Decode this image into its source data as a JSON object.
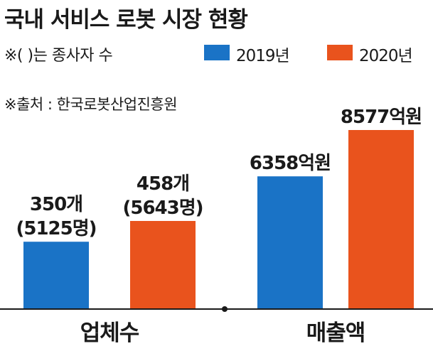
{
  "header": {
    "title": "국내 서비스 로봇 시장 현황",
    "note": "※( )는 종사자 수",
    "source": "※출처 : 한국로봇산업진흥원"
  },
  "legend": [
    {
      "label": "2019년",
      "color": "#1a73c6"
    },
    {
      "label": "2020년",
      "color": "#e9531d"
    }
  ],
  "chart_data": {
    "type": "bar",
    "title": "국내 서비스 로봇 시장 현황",
    "categories": [
      "업체수",
      "매출액"
    ],
    "groups": [
      {
        "category": "업체수",
        "series": [
          {
            "name": "2019년",
            "value": 350,
            "employees": 5125,
            "label_lines": [
              "350개",
              "(5125명)"
            ]
          },
          {
            "name": "2020년",
            "value": 458,
            "employees": 5643,
            "label_lines": [
              "458개",
              "(5643명)"
            ]
          }
        ]
      },
      {
        "category": "매출액",
        "series": [
          {
            "name": "2019년",
            "value": 6358,
            "label_lines": [
              "6358억원"
            ]
          },
          {
            "name": "2020년",
            "value": 8577,
            "label_lines": [
              "8577억원"
            ]
          }
        ]
      }
    ],
    "xlabel": "",
    "ylabel": "",
    "grid": false,
    "legend_position": "top-right"
  }
}
